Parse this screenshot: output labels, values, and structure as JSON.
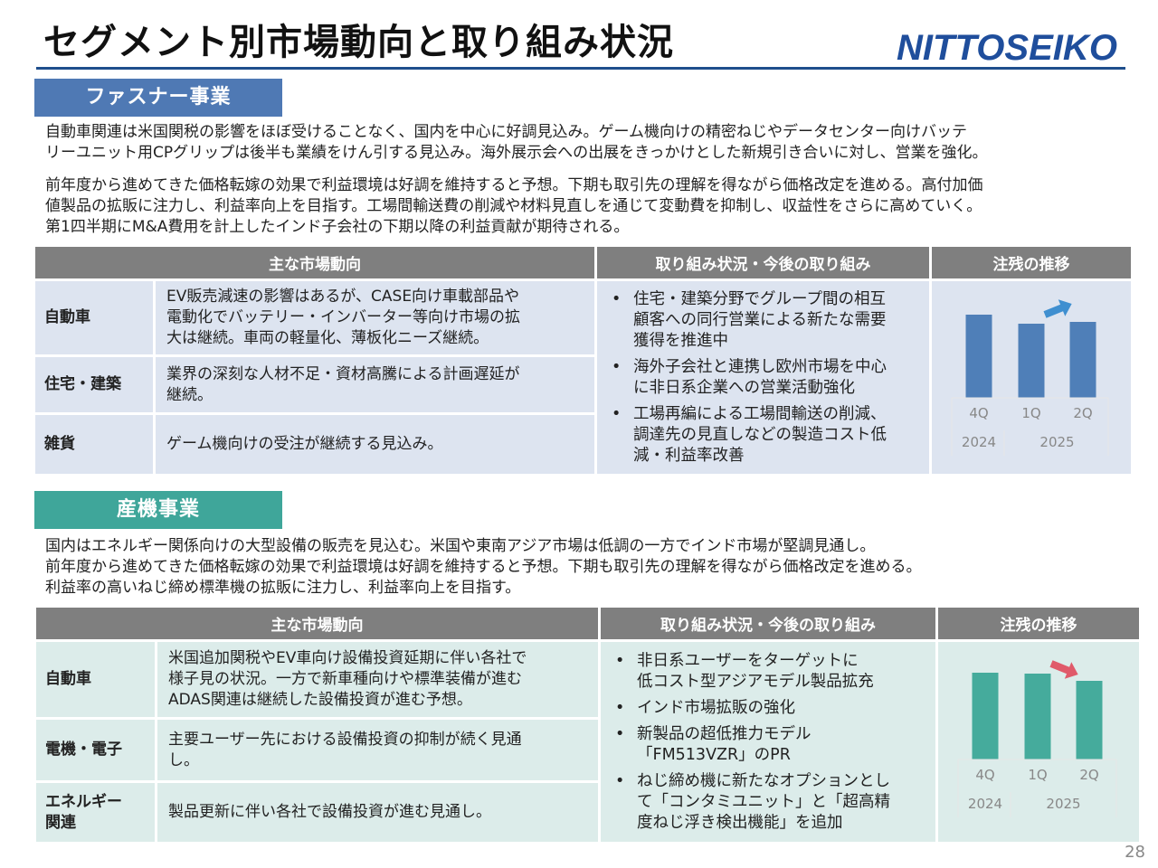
{
  "header": {
    "title": "セグメント別市場動向と取り組み状況",
    "logo_text": "NITTOSEIKO",
    "logo_color": "#1f4e9c"
  },
  "fastener": {
    "tag": "ファスナー事業",
    "tag_color": "#4f79b4",
    "para1_l1": "自動車関連は米国関税の影響をほぼ受けることなく、国内を中心に好調見込み。ゲーム機向けの精密ねじやデータセンター向けバッテ",
    "para1_l2": "リーユニット用CPグリップは後半も業績をけん引する見込み。海外展示会への出展をきっかけとした新規引き合いに対し、営業を強化。",
    "para2_l1": "前年度から進めてきた価格転嫁の効果で利益環境は好調を維持すると予想。下期も取引先の理解を得ながら価格改定を進める。高付加価",
    "para2_l2": "値製品の拡販に注力し、利益率向上を目指す。工場間輸送費の削減や材料見直しを通じて変動費を抑制し、収益性をさらに高めていく。",
    "para2_l3": "第1四半期にM&A費用を計上したインド子会社の下期以降の利益貢献が期待される。",
    "table": {
      "header_market": "主な市場動向",
      "header_actions": "取り組み状況・今後の取り組み",
      "header_backlog": "注残の推移",
      "rows": [
        {
          "segment": "自動車",
          "desc_l1": "EV販売減速の影響はあるが、CASE向け車載部品や",
          "desc_l2": "電動化でバッテリー・インバーター等向け市場の拡",
          "desc_l3": "大は継続。車両の軽量化、薄板化ニーズ継続。"
        },
        {
          "segment": "住宅・建築",
          "desc_l1": "業界の深刻な人材不足・資材高騰による計画遅延が",
          "desc_l2": "継続。"
        },
        {
          "segment": "雑貨",
          "desc_l1": "ゲーム機向けの受注が継続する見込み。"
        }
      ],
      "actions": [
        {
          "l1": "住宅・建築分野でグループ間の相互",
          "l2": "顧客への同行営業による新たな需要",
          "l3": "獲得を推進中"
        },
        {
          "l1": "海外子会社と連携し欧州市場を中心",
          "l2": "に非日系企業への営業活動強化"
        },
        {
          "l1": "工場再編による工場間輸送の削減、",
          "l2": "調達先の見直しなどの製造コスト低",
          "l3": "減・利益率改善"
        }
      ],
      "bullet": "•"
    }
  },
  "industrial": {
    "tag": "産機事業",
    "tag_color": "#3fa69a",
    "para_l1": "国内はエネルギー関係向けの大型設備の販売を見込む。米国や東南アジア市場は低調の一方でインド市場が堅調見通し。",
    "para_l2": "前年度から進めてきた価格転嫁の効果で利益環境は好調を維持すると予想。下期も取引先の理解を得ながら価格改定を進める。",
    "para_l3": "利益率の高いねじ締め標準機の拡販に注力し、利益率向上を目指す。",
    "table": {
      "header_market": "主な市場動向",
      "header_actions": "取り組み状況・今後の取り組み",
      "header_backlog": "注残の推移",
      "rows": [
        {
          "segment": "自動車",
          "desc_l1": "米国追加関税やEV車向け設備投資延期に伴い各社で",
          "desc_l2": "様子見の状況。一方で新車種向けや標準装備が進む",
          "desc_l3": "ADAS関連は継続した設備投資が進む予想。"
        },
        {
          "segment": "電機・電子",
          "desc_l1": "主要ユーザー先における設備投資の抑制が続く見通",
          "desc_l2": "し。"
        },
        {
          "segment_l1": "エネルギー",
          "segment_l2": "関連",
          "desc_l1": "製品更新に伴い各社で設備投資が進む見通し。"
        }
      ],
      "actions": [
        {
          "l1": "非日系ユーザーをターゲットに",
          "l2": "低コスト型アジアモデル製品拡充"
        },
        {
          "l1": "インド市場拡販の強化"
        },
        {
          "l1": "新製品の超低推力モデル",
          "l2": "「FM513VZR」のPR"
        },
        {
          "l1": "ねじ締め機に新たなオプションとし",
          "l2": "て「コンタミユニット」と「超高精",
          "l3": "度ねじ浮き検出機能」を追加"
        }
      ],
      "bullet": "•"
    }
  },
  "chart_data": [
    {
      "type": "bar",
      "title": "注残の推移",
      "categories": [
        "4Q",
        "1Q",
        "2Q"
      ],
      "year_labels": [
        "2024",
        "2025"
      ],
      "values": [
        0.92,
        0.82,
        0.84
      ],
      "value_scale": "relative to the chart's unlabeled value axis (no numeric axis shown)",
      "trend_arrow": "up",
      "bar_color": "#4f7fb8",
      "arrow_color": "#3f8fd0",
      "grid": false,
      "legend": "none"
    },
    {
      "type": "bar",
      "title": "注残の推移",
      "categories": [
        "4Q",
        "1Q",
        "2Q"
      ],
      "year_labels": [
        "2024",
        "2025"
      ],
      "values": [
        0.96,
        0.95,
        0.87
      ],
      "value_scale": "relative to the chart's unlabeled value axis (no numeric axis shown)",
      "trend_arrow": "down",
      "bar_color": "#45ab9c",
      "arrow_color": "#e05a6a",
      "grid": false,
      "legend": "none"
    }
  ],
  "page_number": "28"
}
